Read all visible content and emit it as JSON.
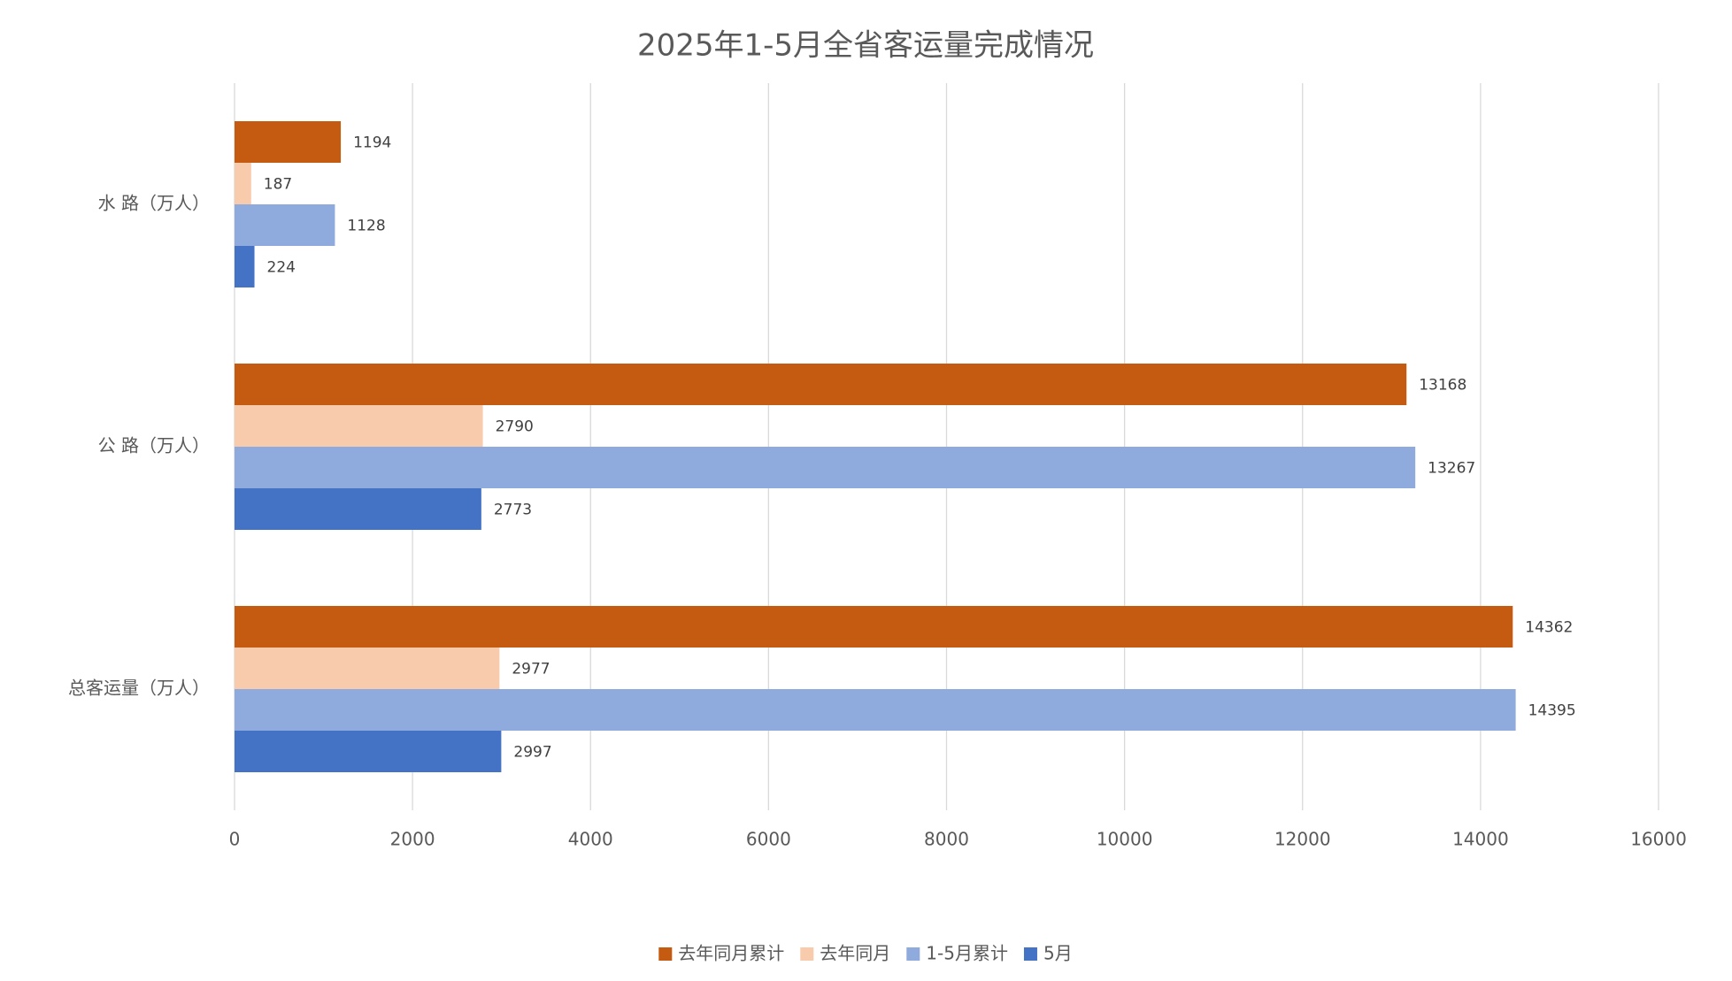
{
  "chart_data": {
    "type": "hbar",
    "title": "2025年1-5月全省客运量完成情况",
    "categories": [
      "水 路（万人）",
      "公 路（万人）",
      "总客运量（万人）"
    ],
    "series": [
      {
        "name": "去年同月累计",
        "color": "#C55A11",
        "values": [
          1194,
          13168,
          14362
        ]
      },
      {
        "name": "去年同月",
        "color": "#F8CBAD",
        "values": [
          187,
          2790,
          2977
        ]
      },
      {
        "name": "1-5月累计",
        "color": "#8FAADC",
        "values": [
          1128,
          13267,
          14395
        ]
      },
      {
        "name": "5月",
        "color": "#4472C4",
        "values": [
          224,
          2773,
          2997
        ]
      }
    ],
    "xlim": [
      0,
      16000
    ],
    "xticks": [
      0,
      2000,
      4000,
      6000,
      8000,
      10000,
      12000,
      14000,
      16000
    ],
    "grid": true,
    "legend": "bottom"
  }
}
